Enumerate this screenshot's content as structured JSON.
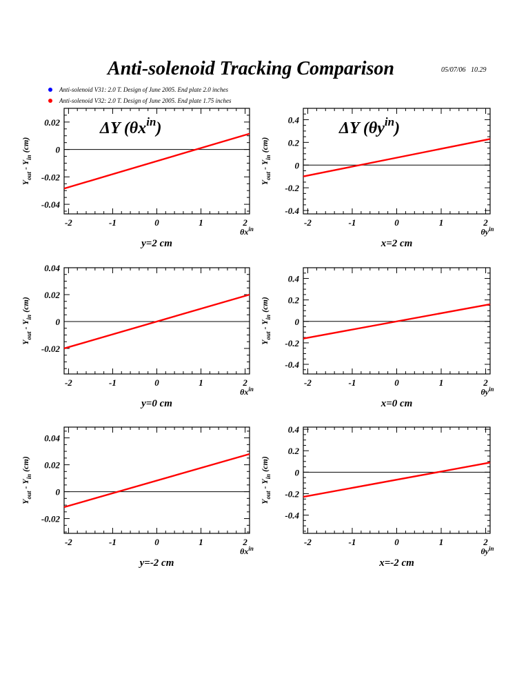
{
  "header": {
    "title": "Anti-solenoid Tracking Comparison",
    "timestamp": "05/07/06   10.29"
  },
  "legend": [
    {
      "label": "Anti-solenoid V31: 2.0 T. Design of June 2005. End plate 2.0 inches",
      "color": "#0000ff"
    },
    {
      "label": "Anti-solenoid V32: 2.0 T. Design of June 2005. End plate 1.75 inches",
      "color": "#ff0000"
    }
  ],
  "colors": {
    "series": "#ff0000",
    "axes": "#000000"
  },
  "ylabel": "Y_out - Y_in (cm)",
  "chart_data": [
    {
      "type": "line",
      "title": "ΔY (θx^in)",
      "xlabel": "θx^in",
      "caption": "y=2 cm",
      "xlim": [
        -2.1,
        2.1
      ],
      "ylim": [
        -0.047,
        0.03
      ],
      "xticks": [
        "-2",
        "-1",
        "0",
        "1",
        "2"
      ],
      "yticks": [
        "0.02",
        "0",
        "-0.02",
        "-0.04"
      ],
      "series": [
        {
          "x": [
            -2.1,
            2.1
          ],
          "y": [
            -0.0285,
            0.0115
          ]
        }
      ]
    },
    {
      "type": "line",
      "title": "ΔY (θy^in)",
      "xlabel": "θy^in",
      "caption": "x=2 cm",
      "xlim": [
        -2.1,
        2.1
      ],
      "ylim": [
        -0.43,
        0.5
      ],
      "xticks": [
        "-2",
        "-1",
        "0",
        "1",
        "2"
      ],
      "yticks": [
        "0.4",
        "0.2",
        "0",
        "-0.2",
        "-0.4"
      ],
      "series": [
        {
          "x": [
            -2.1,
            2.1
          ],
          "y": [
            -0.1,
            0.23
          ]
        }
      ]
    },
    {
      "type": "line",
      "title": "",
      "xlabel": "θx^in",
      "caption": "y=0 cm",
      "xlim": [
        -2.1,
        2.1
      ],
      "ylim": [
        -0.039,
        0.04
      ],
      "xticks": [
        "-2",
        "-1",
        "0",
        "1",
        "2"
      ],
      "yticks": [
        "0.04",
        "0.02",
        "0",
        "-0.02"
      ],
      "series": [
        {
          "x": [
            -2.1,
            2.1
          ],
          "y": [
            -0.02,
            0.02
          ]
        }
      ]
    },
    {
      "type": "line",
      "title": "",
      "xlabel": "θy^in",
      "caption": "x=0 cm",
      "xlim": [
        -2.1,
        2.1
      ],
      "ylim": [
        -0.49,
        0.5
      ],
      "xticks": [
        "-2",
        "-1",
        "0",
        "1",
        "2"
      ],
      "yticks": [
        "0.4",
        "0.2",
        "0",
        "-0.2",
        "-0.4"
      ],
      "series": [
        {
          "x": [
            -2.1,
            2.1
          ],
          "y": [
            -0.16,
            0.16
          ]
        }
      ]
    },
    {
      "type": "line",
      "title": "",
      "xlabel": "θx^in",
      "caption": "y=-2 cm",
      "xlim": [
        -2.1,
        2.1
      ],
      "ylim": [
        -0.031,
        0.048
      ],
      "xticks": [
        "-2",
        "-1",
        "0",
        "1",
        "2"
      ],
      "yticks": [
        "0.04",
        "0.02",
        "0",
        "-0.02"
      ],
      "series": [
        {
          "x": [
            -2.1,
            2.1
          ],
          "y": [
            -0.0115,
            0.028
          ]
        }
      ]
    },
    {
      "type": "line",
      "title": "",
      "xlabel": "θy^in",
      "caption": "x=-2 cm",
      "xlim": [
        -2.1,
        2.1
      ],
      "ylim": [
        -0.57,
        0.42
      ],
      "xticks": [
        "-2",
        "-1",
        "0",
        "1",
        "2"
      ],
      "yticks": [
        "0.4",
        "0.2",
        "0",
        "-0.2",
        "-0.4"
      ],
      "series": [
        {
          "x": [
            -2.1,
            2.1
          ],
          "y": [
            -0.23,
            0.09
          ]
        }
      ]
    }
  ]
}
